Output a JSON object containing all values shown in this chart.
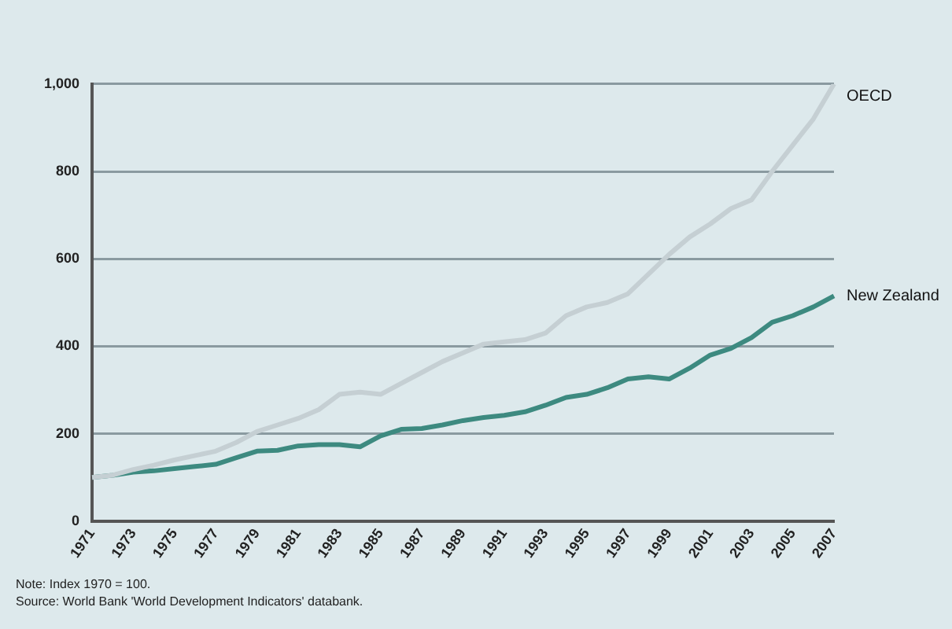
{
  "chart_data": {
    "type": "line",
    "categories": [
      "1971",
      null,
      "1973",
      null,
      "1975",
      null,
      "1977",
      null,
      "1979",
      null,
      "1981",
      null,
      "1983",
      null,
      "1985",
      null,
      "1987",
      null,
      "1989",
      null,
      "1991",
      null,
      "1993",
      null,
      "1995",
      null,
      "1997",
      null,
      "1999",
      null,
      "2001",
      null,
      "2003",
      null,
      "2005",
      null,
      "2007"
    ],
    "series": [
      {
        "name": "OECD",
        "color": "#c5cfd3",
        "values": [
          100,
          105,
          118,
          128,
          140,
          150,
          160,
          180,
          205,
          220,
          235,
          255,
          290,
          295,
          290,
          315,
          340,
          365,
          385,
          405,
          410,
          415,
          430,
          470,
          490,
          500,
          520,
          565,
          610,
          650,
          680,
          715,
          735,
          800,
          860,
          920,
          1000
        ]
      },
      {
        "name": "New Zealand",
        "color": "#3d8a80",
        "values": [
          100,
          105,
          112,
          115,
          120,
          125,
          130,
          145,
          160,
          162,
          172,
          175,
          175,
          170,
          195,
          210,
          212,
          220,
          230,
          237,
          242,
          250,
          265,
          283,
          290,
          305,
          325,
          330,
          325,
          350,
          380,
          395,
          420,
          455,
          470,
          490,
          515
        ]
      }
    ],
    "ylim": [
      0,
      1000
    ],
    "yticks": [
      0,
      {
        "value": 200,
        "label": "200"
      },
      {
        "value": 400,
        "label": "400"
      },
      {
        "value": 600,
        "label": "600"
      },
      {
        "value": 800,
        "label": "800"
      },
      {
        "value": 1000,
        "label": "1,000"
      }
    ],
    "grid": "y",
    "legend": false,
    "marker": "none",
    "line_style": "solid",
    "annotations": [
      "Note: Index 1970 = 100.",
      "Source: World Bank 'World Development Indicators' databank."
    ]
  }
}
